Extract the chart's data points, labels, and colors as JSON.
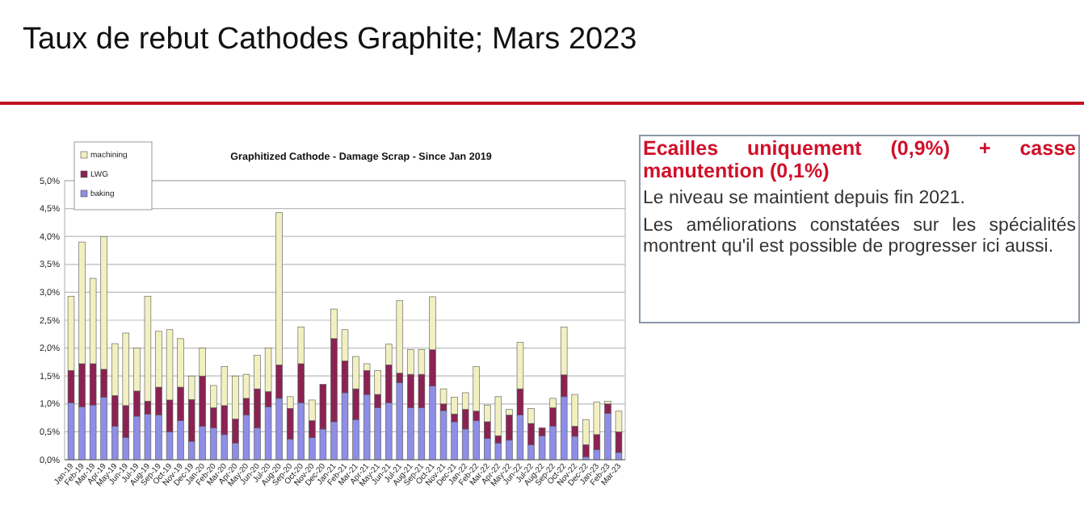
{
  "chart_data": {
    "type": "bar",
    "stacked": true,
    "title": "Taux de rebut Cathodes Graphite; Mars 2023",
    "subtitle": "Graphitized Cathode - Damage Scrap - Since Jan 2019",
    "categories": [
      "Jan-19",
      "Feb-19",
      "Mar-19",
      "Apr-19",
      "May-19",
      "Jun-19",
      "Jul-19",
      "Aug-19",
      "Sep-19",
      "Oct-19",
      "Nov-19",
      "Dec-19",
      "Jan-20",
      "Feb-20",
      "Mar-20",
      "Apr-20",
      "May-20",
      "Jun-20",
      "Jul-20",
      "Aug-20",
      "Sep-20",
      "Oct-20",
      "Nov-20",
      "Dec-20",
      "Jan-21",
      "Feb-21",
      "Mar-21",
      "Apr-21",
      "May-21",
      "Jun-21",
      "Jul-21",
      "Aug-21",
      "Sep-21",
      "Oct-21",
      "Nov-21",
      "Dec-21",
      "Jan-22",
      "Feb-22",
      "Mar-22",
      "Apr-22",
      "May-22",
      "Jun-22",
      "Jul-22",
      "Aug-22",
      "Sep-22",
      "Oct-22",
      "Nov-22",
      "Dec-22",
      "Jan-23",
      "Feb-23",
      "Mar-23"
    ],
    "series": [
      {
        "name": "baking",
        "color": "#8e8ee6",
        "values": [
          1.02,
          0.95,
          0.98,
          1.12,
          0.6,
          0.4,
          0.78,
          0.82,
          0.8,
          0.5,
          0.7,
          0.33,
          0.6,
          0.57,
          0.45,
          0.3,
          0.8,
          0.57,
          0.95,
          1.1,
          0.37,
          1.02,
          0.4,
          0.55,
          0.68,
          1.2,
          0.72,
          1.17,
          0.93,
          1.02,
          1.38,
          0.93,
          0.93,
          1.32,
          0.88,
          0.68,
          0.55,
          0.7,
          0.38,
          0.3,
          0.35,
          0.8,
          0.27,
          0.43,
          0.6,
          1.13,
          0.42,
          0.05,
          0.18,
          0.83,
          0.13
        ]
      },
      {
        "name": "LWG",
        "color": "#8b2252",
        "values": [
          0.58,
          0.77,
          0.74,
          0.5,
          0.55,
          0.57,
          0.45,
          0.23,
          0.5,
          0.57,
          0.6,
          0.75,
          0.9,
          0.36,
          0.52,
          0.43,
          0.3,
          0.7,
          0.27,
          0.6,
          0.55,
          0.7,
          0.3,
          0.8,
          1.49,
          0.57,
          0.55,
          0.43,
          0.24,
          0.68,
          0.17,
          0.6,
          0.6,
          0.65,
          0.12,
          0.14,
          0.35,
          0.17,
          0.3,
          0.13,
          0.45,
          0.47,
          0.38,
          0.14,
          0.33,
          0.39,
          0.18,
          0.22,
          0.27,
          0.17,
          0.37
        ]
      },
      {
        "name": "machining",
        "color": "#f2f0c0",
        "values": [
          1.33,
          2.18,
          1.53,
          2.38,
          0.93,
          1.3,
          0.77,
          1.88,
          1.0,
          1.26,
          0.87,
          0.42,
          0.5,
          0.4,
          0.7,
          0.77,
          0.43,
          0.6,
          0.78,
          2.73,
          0.21,
          0.66,
          0.37,
          0,
          0.53,
          0.56,
          0.58,
          0.12,
          0.43,
          0.37,
          1.3,
          0.44,
          0.44,
          0.95,
          0.27,
          0.3,
          0.3,
          0.8,
          0.3,
          0.7,
          0.1,
          0.83,
          0.27,
          0,
          0.17,
          0.86,
          0.57,
          0.45,
          0.58,
          0.05,
          0.37
        ]
      }
    ],
    "ylim": [
      0,
      5
    ],
    "yticks": [
      {
        "value": 0,
        "label": "0,0%"
      },
      {
        "value": 0.5,
        "label": "0,5%"
      },
      {
        "value": 1,
        "label": "1,0%"
      },
      {
        "value": 1.5,
        "label": "1,5%"
      },
      {
        "value": 2,
        "label": "2,0%"
      },
      {
        "value": 2.5,
        "label": "2,5%"
      },
      {
        "value": 3,
        "label": "3,0%"
      },
      {
        "value": 3.5,
        "label": "3,5%"
      },
      {
        "value": 4,
        "label": "4,0%"
      },
      {
        "value": 4.5,
        "label": "4,5%"
      },
      {
        "value": 5,
        "label": "5,0%"
      }
    ],
    "grid": "y",
    "legend": "top left",
    "annotations": [
      "Ecailles uniquement (0,9%) + casse manutention (0,1%)",
      "Le niveau se maintient depuis fin 2021.",
      "Les améliorations constatées sur les spécialités montrent qu'il est possible de progresser ici aussi."
    ]
  }
}
